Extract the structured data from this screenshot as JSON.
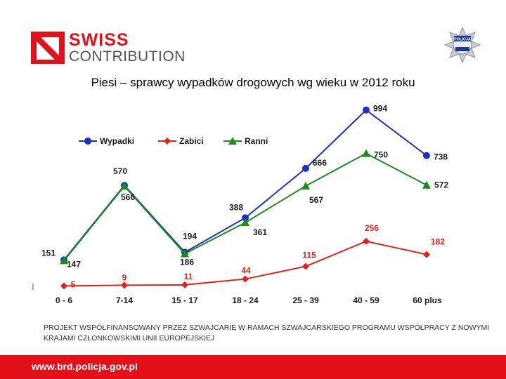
{
  "header": {
    "logo_line1": "SWISS",
    "logo_line2": "CONTRIBUTION",
    "badge_text": "POLICJA",
    "badge_icon": "police-star-icon",
    "brand_red": "#e2111b"
  },
  "chart_data": {
    "type": "line",
    "title": "Piesi – sprawcy wypadków drogowych wg wieku w 2012 roku",
    "categories": [
      "0 - 6",
      "7-14",
      "15 - 17",
      "18 - 24",
      "25 - 39",
      "40 - 59",
      "60  plus"
    ],
    "ylim": [
      0,
      1000
    ],
    "grid": false,
    "legend_position": "top-left",
    "series": [
      {
        "name": "Wypadki",
        "color": "#1f2fc1",
        "marker": "circle",
        "values": [
          151,
          570,
          194,
          388,
          666,
          994,
          738
        ],
        "labels": [
          "151",
          "570",
          "194",
          "388",
          "666",
          "994",
          "738"
        ]
      },
      {
        "name": "Zabici",
        "color": "#e3201c",
        "marker": "diamond",
        "values": [
          5,
          9,
          11,
          44,
          115,
          256,
          182
        ],
        "labels": [
          "5",
          "9",
          "11",
          "44",
          "115",
          "256",
          "182"
        ]
      },
      {
        "name": "Ranni",
        "color": "#1e8a1e",
        "marker": "triangle",
        "values": [
          147,
          566,
          186,
          361,
          567,
          750,
          572
        ],
        "labels": [
          "147",
          "566",
          "186",
          "361",
          "567",
          "750",
          "572"
        ]
      }
    ]
  },
  "footnote": "PROJEKT WSPÓŁFINANSOWANY PRZEZ SZWAJCARIĘ  W RAMACH SZWAJCARSKIEGO PROGRAMU WSPÓŁPRACY  Z NOWYMI KRAJAMI CZŁONKOWSKIMI UNII EUROPEJSKIEJ",
  "footer": {
    "url": "www.brd.policja.gov.pl"
  }
}
